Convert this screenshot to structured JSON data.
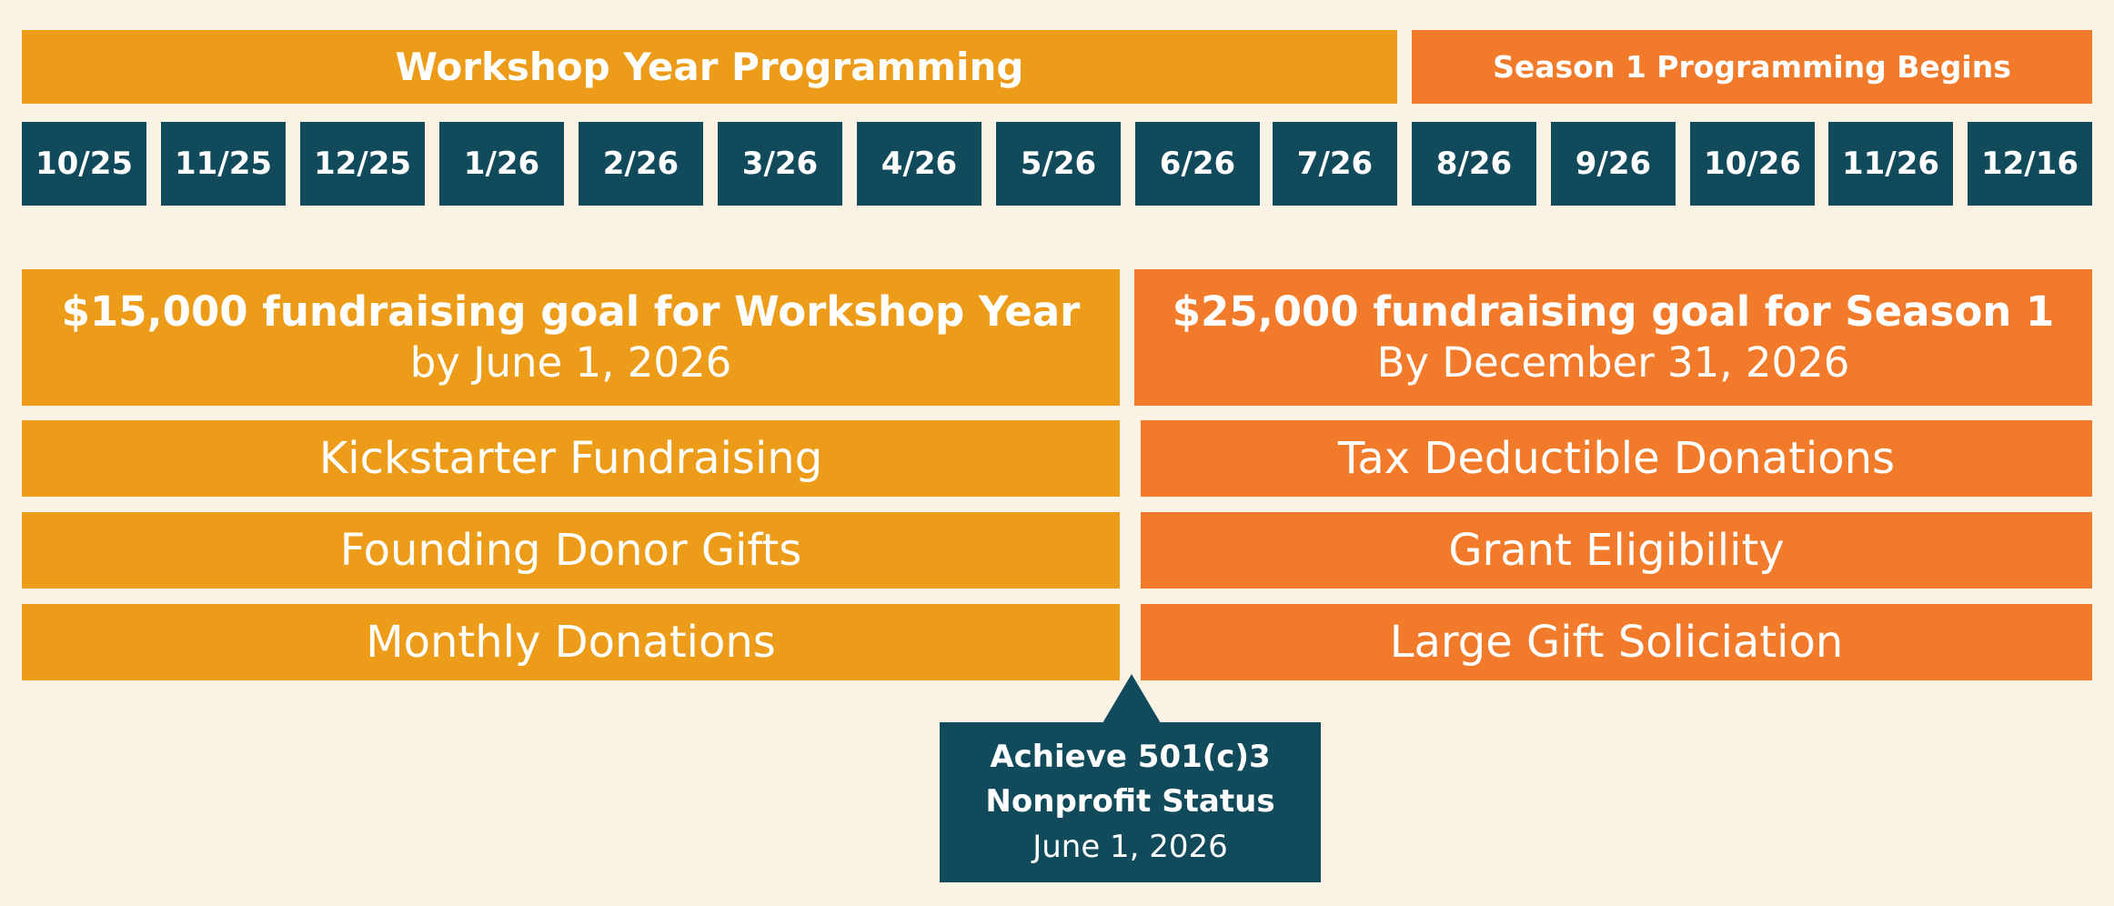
{
  "header": {
    "workshop_label": "Workshop Year Programming",
    "season_label": "Season 1 Programming Begins"
  },
  "months": [
    "10/25",
    "11/25",
    "12/25",
    "1/26",
    "2/26",
    "3/26",
    "4/26",
    "5/26",
    "6/26",
    "7/26",
    "8/26",
    "9/26",
    "10/26",
    "11/26",
    "12/16"
  ],
  "goals": {
    "workshop": {
      "title": "$15,000 fundraising goal for Workshop Year",
      "subtitle": "by June 1, 2026"
    },
    "season": {
      "title": "$25,000 fundraising goal for Season 1",
      "subtitle": "By December 31, 2026"
    }
  },
  "workshop_items": [
    "Kickstarter Fundraising",
    "Founding Donor Gifts",
    "Monthly Donations"
  ],
  "season_items": [
    "Tax Deductible Donations",
    "Grant Eligibility",
    "Large Gift Soliciation"
  ],
  "milestone": {
    "line1": "Achieve 501(c)3",
    "line2": "Nonprofit Status",
    "date": "June 1, 2026"
  },
  "colors": {
    "background": "#faf3e4",
    "workshop": "#ec9c18",
    "season": "#f27a2b",
    "teal": "#114a5b",
    "text": "#ffffff"
  }
}
